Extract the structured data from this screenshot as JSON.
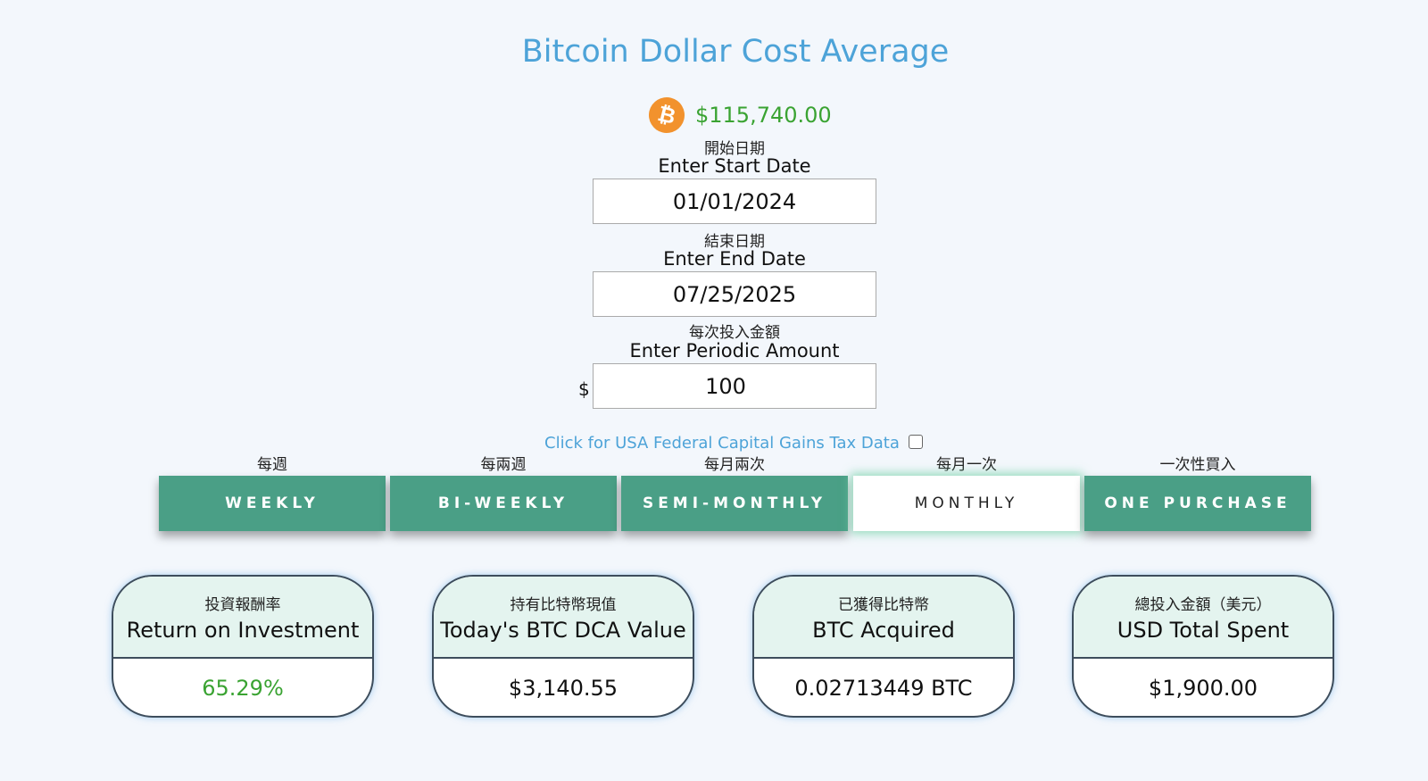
{
  "header": {
    "title": "Bitcoin Dollar Cost Average",
    "btc_symbol": "₿",
    "btc_price": "$115,740.00"
  },
  "form": {
    "start": {
      "label_zh": "開始日期",
      "label_en": "Enter Start Date",
      "value": "01/01/2024"
    },
    "end": {
      "label_zh": "結束日期",
      "label_en": "Enter End Date",
      "value": "07/25/2025"
    },
    "amount": {
      "label_zh": "每次投入金額",
      "label_en": "Enter Periodic Amount",
      "currency": "$",
      "value": "100"
    },
    "tax_link": "Click for USA Federal Capital Gains Tax Data",
    "tax_checked": false
  },
  "frequency": {
    "selected": "MONTHLY",
    "options": [
      {
        "label_zh": "每週",
        "label": "WEEKLY"
      },
      {
        "label_zh": "每兩週",
        "label": "BI-WEEKLY"
      },
      {
        "label_zh": "每月兩次",
        "label": "SEMI-MONTHLY"
      },
      {
        "label_zh": "每月一次",
        "label": "MONTHLY"
      },
      {
        "label_zh": "一次性買入",
        "label": "ONE PURCHASE"
      }
    ]
  },
  "results": [
    {
      "label_zh": "投資報酬率",
      "label_en": "Return on Investment",
      "value": "65.29%"
    },
    {
      "label_zh": "持有比特幣現值",
      "label_en": "Today's BTC DCA Value",
      "value": "$3,140.55"
    },
    {
      "label_zh": "已獲得比特幣",
      "label_en": "BTC Acquired",
      "value": "0.02713449 BTC"
    },
    {
      "label_zh": "總投入金額（美元）",
      "label_en": "USD Total Spent",
      "value": "$1,900.00"
    }
  ],
  "colors": {
    "background": "#f3f7fc",
    "title": "#4da3d8",
    "price_green": "#3aa332",
    "button": "#4a9f86",
    "card_header": "#e4f4ef",
    "bitcoin_orange": "#f2922d"
  }
}
